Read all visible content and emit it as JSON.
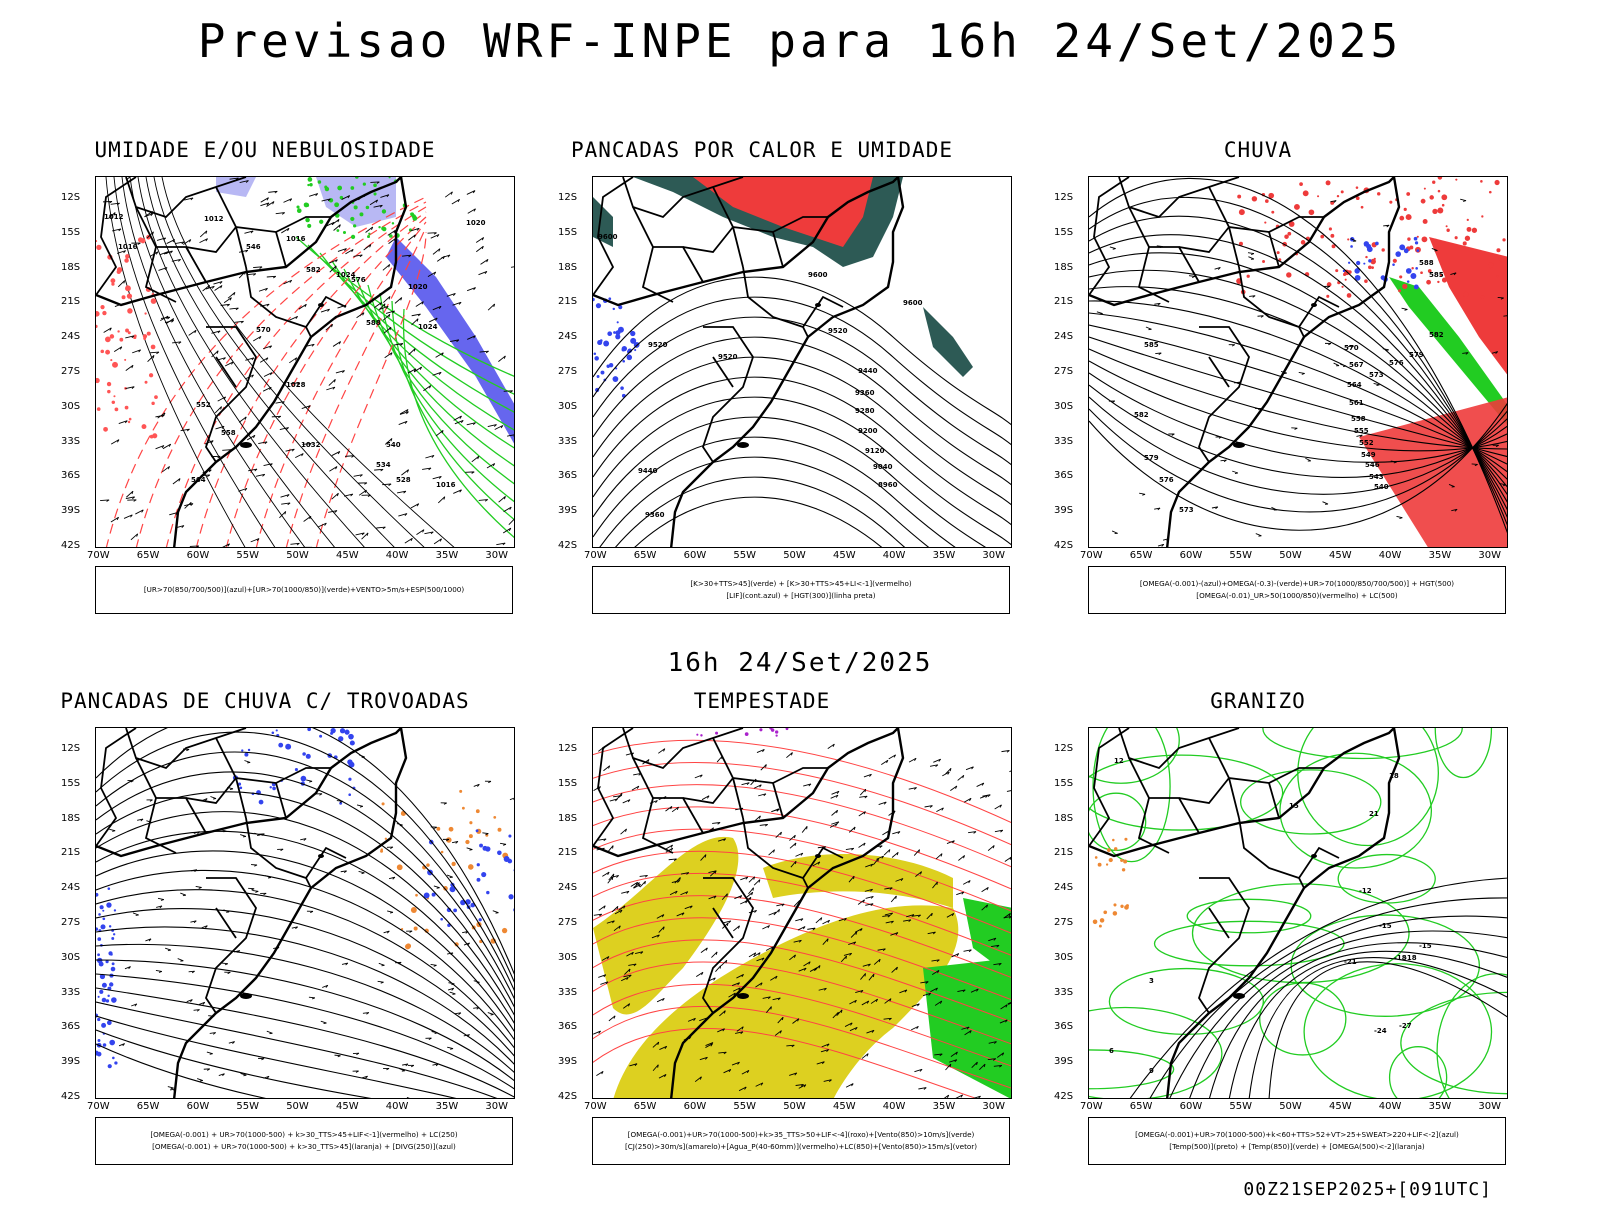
{
  "title": "Previsao WRF-INPE  para 16h 24/Set/2025",
  "subtitle": "16h 24/Set/2025",
  "footer": "00Z21SEP2025+[091UTC]",
  "axes": {
    "lat_labels": [
      "12S",
      "15S",
      "18S",
      "21S",
      "24S",
      "27S",
      "30S",
      "33S",
      "36S",
      "39S",
      "42S"
    ],
    "lon_labels": [
      "70W",
      "65W",
      "60W",
      "55W",
      "50W",
      "45W",
      "40W",
      "35W",
      "30W"
    ]
  },
  "panels": [
    {
      "title": "UMIDADE E/OU NEBULOSIDADE",
      "legend": [
        "[UR>70(850/700/500)](azul)+[UR>70(1000/850)](verde)+VENTO>5m/s+ESP(500/1000)"
      ],
      "contour_labels": [
        "1012",
        "1012",
        "1016",
        "1016",
        "1020",
        "1020",
        "1024",
        "1024",
        "1028",
        "1032",
        "1016",
        "546",
        "552",
        "558",
        "564",
        "570",
        "576",
        "582",
        "588",
        "528",
        "534",
        "540"
      ]
    },
    {
      "title": "PANCADAS POR CALOR E UMIDADE",
      "legend": [
        "[K>30+TTS>45](verde) + [K>30+TTS>45+LI<-1](vermelho)",
        "[LIF](cont.azul) + [HGT(300)](linha preta)"
      ],
      "contour_labels": [
        "9600",
        "9600",
        "9600",
        "9520",
        "9520",
        "9520",
        "9440",
        "9360",
        "9280",
        "9200",
        "9120",
        "9040",
        "8960",
        "9440",
        "9360"
      ]
    },
    {
      "title": "CHUVA",
      "legend": [
        "[OMEGA(-0.001)-(azul)+OMEGA(-0.3)-(verde)+UR>70(1000/850/700/500)] + HGT(500)",
        "[OMEGA(-0.01)_UR>50(1000/850)(vermelho) + LC(500)"
      ],
      "contour_labels": [
        "585",
        "582",
        "579",
        "576",
        "573",
        "570",
        "567",
        "564",
        "561",
        "558",
        "555",
        "552",
        "549",
        "546",
        "543",
        "540",
        "588",
        "585",
        "582",
        "579",
        "576",
        "573"
      ]
    },
    {
      "title": "PANCADAS DE CHUVA C/ TROVOADAS",
      "legend": [
        "[OMEGA(-0.001) + UR>70(1000-500) + k>30_TTS>45+LIF<-1](vermelho) + LC(250)",
        "[OMEGA(-0.001) + UR>70(1000-500) + k>30_TTS>45](laranja) + [DIVG(250)](azul)"
      ]
    },
    {
      "title": "TEMPESTADE",
      "legend": [
        "[OMEGA(-0.001)+UR>70(1000-500)+k>35_TTS>50+LIF<-4](roxo)+[Vento(850)>10m/s](verde)",
        "[CJ(250)>30m/s](amarelo)+[Agua_P(40-60mm)](vermelho)+LC(850)+[Vento(850)>15m/s](vetor)"
      ]
    },
    {
      "title": "GRANIZO",
      "legend": [
        "[OMEGA(-0.001)+UR>70(1000-500)+k<60+TTS>52+VT>25+SWEAT>220+LIF<-2](azul)",
        "[Temp(500)](preto) + [Temp(850)](verde) + [OMEGA(500)<-2](laranja)"
      ],
      "contour_labels": [
        "-12",
        "-15",
        "-18",
        "-21",
        "-24",
        "-27",
        "-18",
        "-15",
        "12",
        "15",
        "18",
        "21",
        "3",
        "6",
        "9"
      ]
    }
  ]
}
